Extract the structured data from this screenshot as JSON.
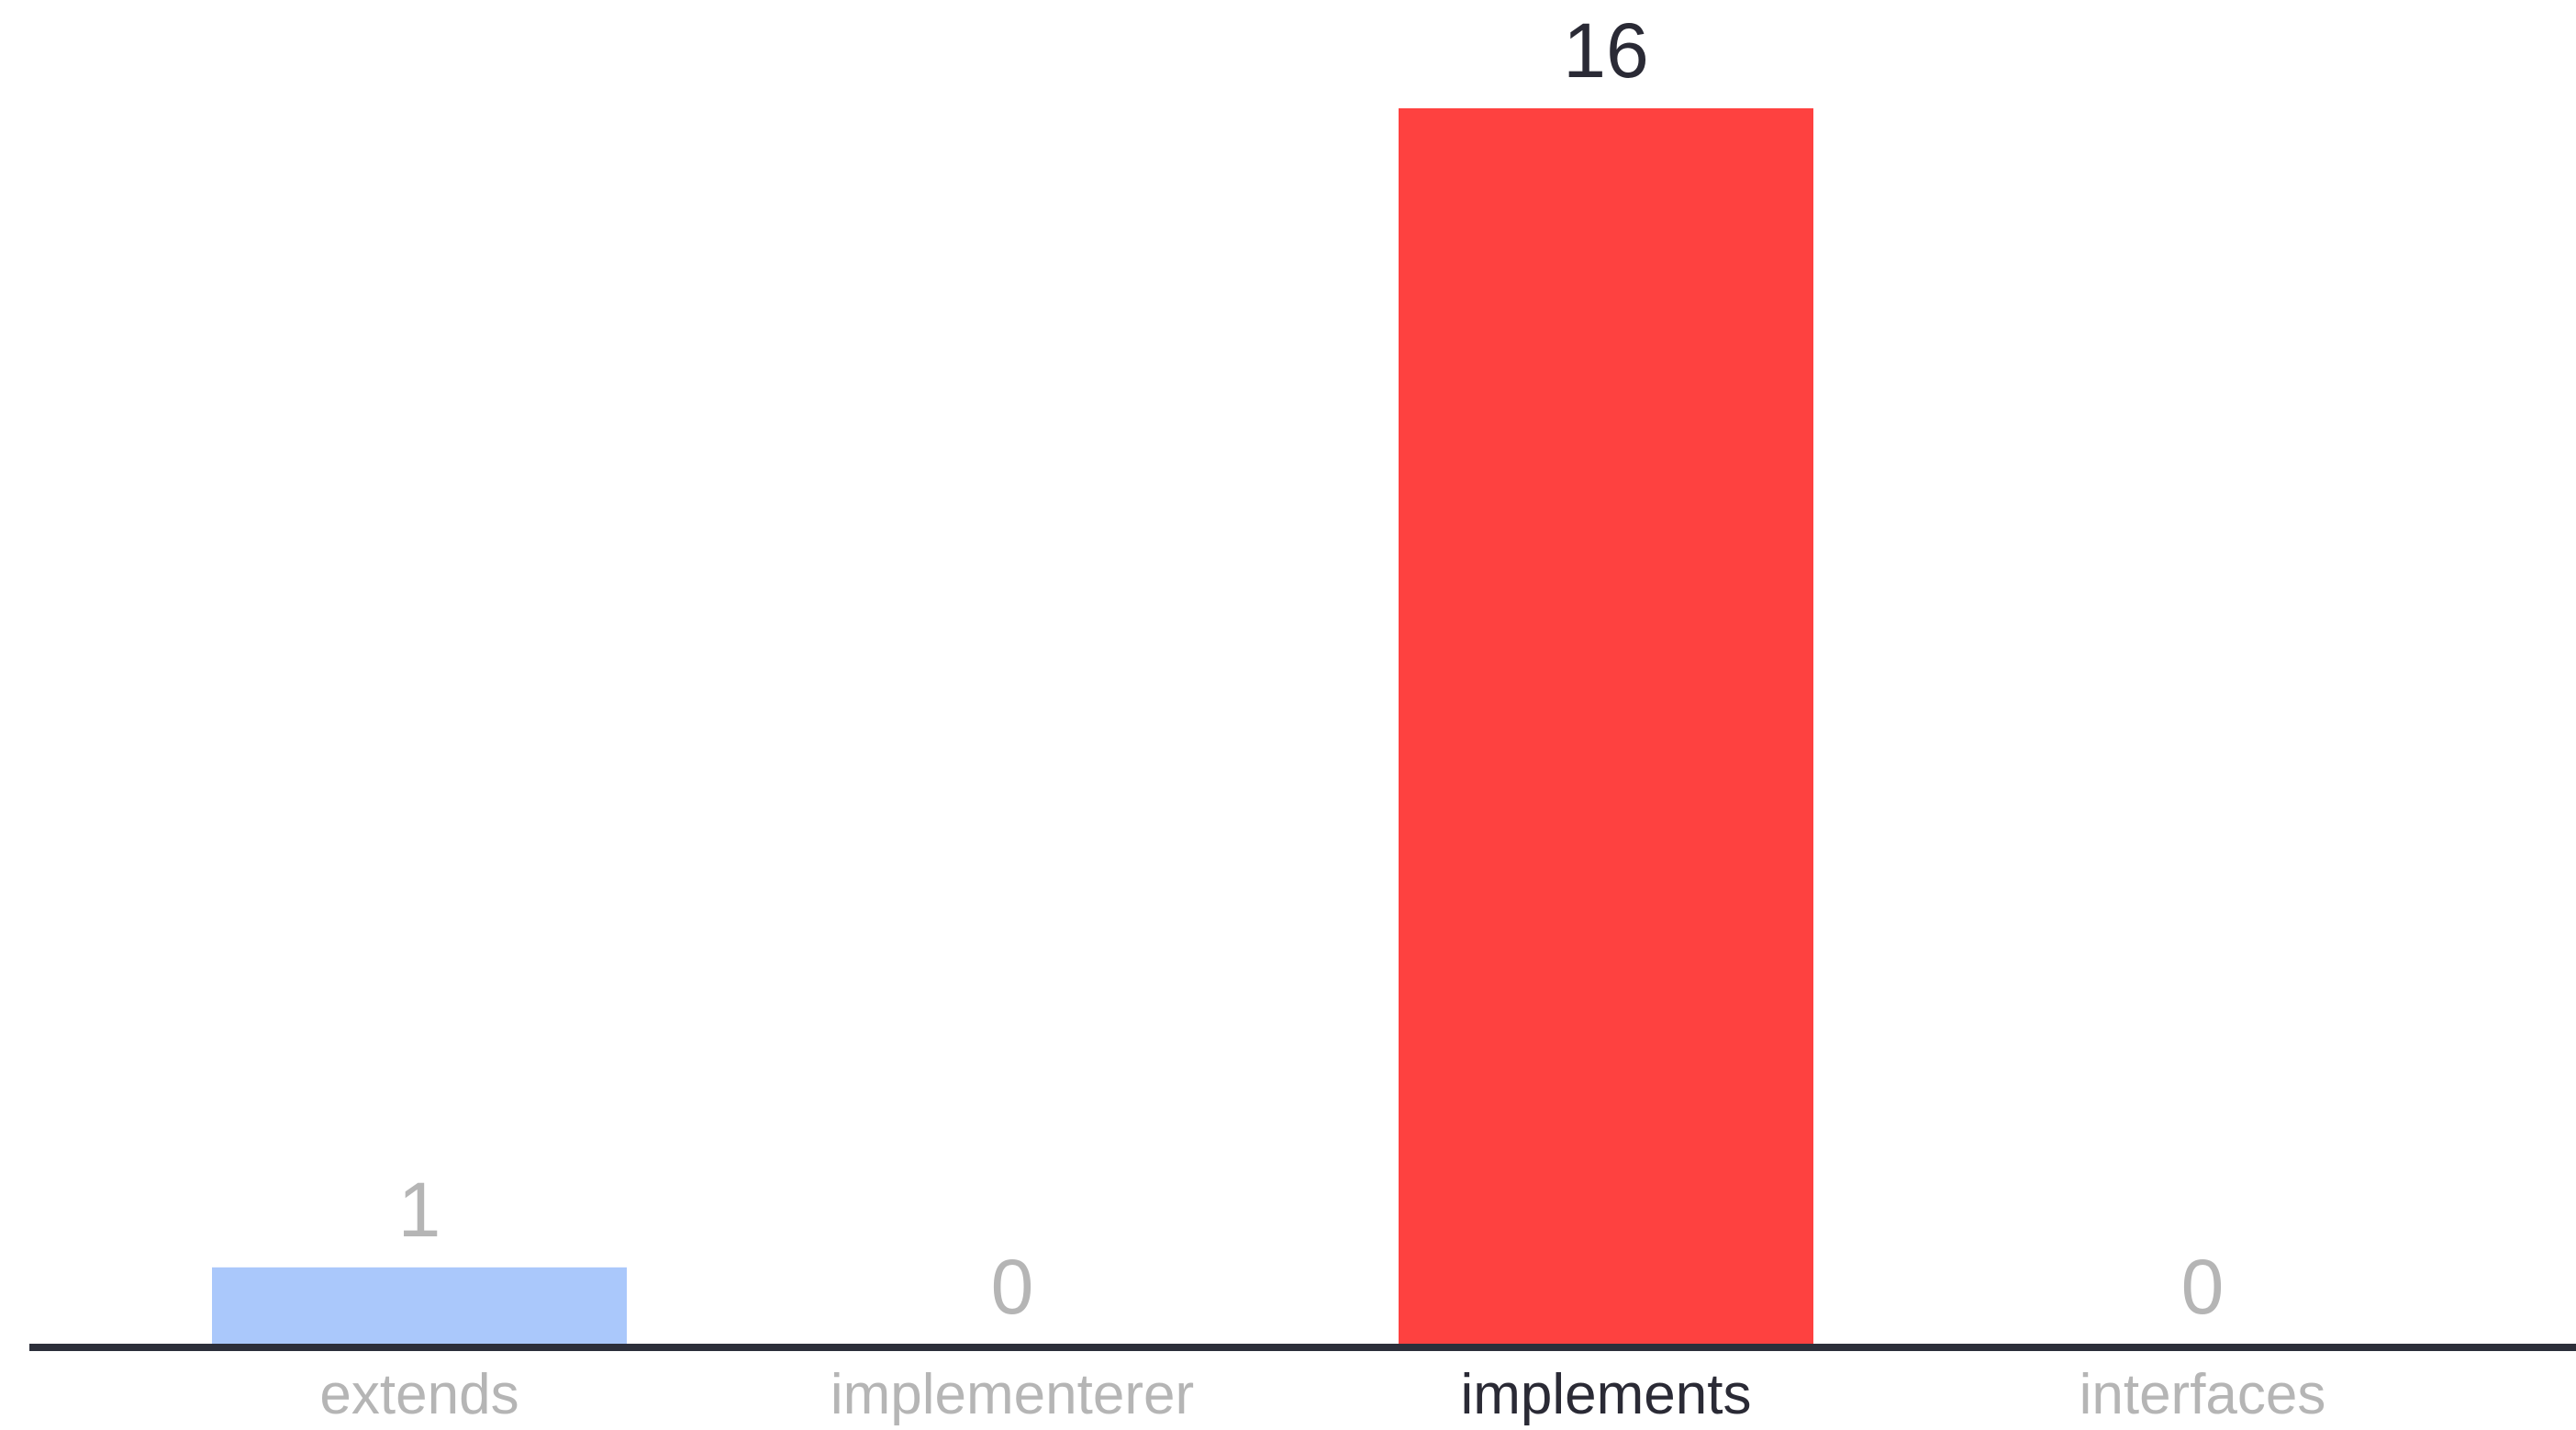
{
  "chart_data": {
    "type": "bar",
    "categories": [
      "extends",
      "implementerer",
      "implements",
      "interfaces"
    ],
    "values": [
      1,
      0,
      16,
      0
    ],
    "value_labels": [
      "1",
      "0",
      "16",
      "0"
    ],
    "highlighted_category": "implements",
    "ylim": [
      0,
      16
    ],
    "grid": false,
    "legend": "none",
    "title": "",
    "xlabel": "",
    "ylabel": "",
    "colors": {
      "bars": [
        "#aac8fb",
        "#aac8fb",
        "#fe4140",
        "#aac8fb"
      ],
      "highlight_text": "#2a2a35",
      "muted_text": "#b5b5b5",
      "baseline": "#2c2f3a"
    }
  }
}
